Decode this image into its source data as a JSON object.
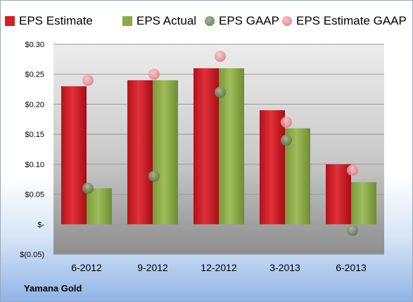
{
  "chart_data": {
    "type": "bar",
    "categories": [
      "6-2012",
      "9-2012",
      "12-2012",
      "3-2013",
      "6-2013"
    ],
    "series": [
      {
        "name": "EPS Estimate",
        "kind": "bar",
        "color": "#d01f27",
        "values": [
          0.23,
          0.24,
          0.26,
          0.19,
          0.1
        ]
      },
      {
        "name": "EPS Actual",
        "kind": "bar",
        "color": "#8aac46",
        "values": [
          0.06,
          0.24,
          0.26,
          0.16,
          0.07
        ]
      },
      {
        "name": "EPS GAAP",
        "kind": "point",
        "color": "#6f8a55",
        "values": [
          0.06,
          0.08,
          0.22,
          0.14,
          -0.01
        ]
      },
      {
        "name": "EPS Estimate GAAP",
        "kind": "point",
        "color": "#f08c94",
        "values": [
          0.24,
          0.25,
          0.28,
          0.17,
          0.09
        ]
      }
    ],
    "y_ticks": [
      "$0.30",
      "$0.25",
      "$0.20",
      "$0.15",
      "$0.10",
      "$0.05",
      "$-",
      "$(0.05)"
    ],
    "y_tick_values": [
      0.3,
      0.25,
      0.2,
      0.15,
      0.1,
      0.05,
      0,
      -0.05
    ],
    "ylim": [
      -0.05,
      0.3
    ],
    "grid": true,
    "legend_position": "top"
  },
  "company": "Yamana Gold"
}
